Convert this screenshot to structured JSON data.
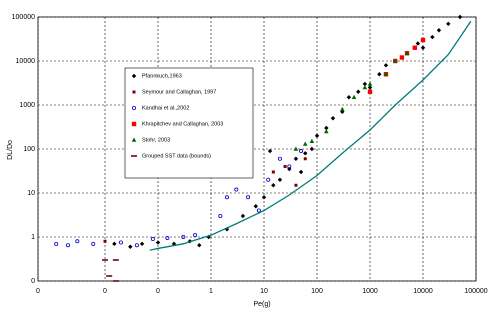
{
  "chart_data": {
    "type": "scatter",
    "xlabel": "Pe(g)",
    "ylabel": "DL/Do",
    "xlog": true,
    "ylog": true,
    "grid": true,
    "legend": "upper left",
    "xlim": [
      0.000544,
      100000
    ],
    "ylim": [
      0.1,
      100000
    ],
    "xticks": [
      {
        "value": 0.000544,
        "label": "0"
      },
      {
        "value": 0.01,
        "label": "0"
      },
      {
        "value": 0.1,
        "label": "0"
      },
      1,
      10,
      100,
      1000,
      10000,
      100000
    ],
    "yticks": [
      {
        "value": 0.1,
        "label": "0"
      },
      1,
      10,
      100,
      1000,
      10000,
      100000
    ],
    "series": [
      {
        "name": "Pfannkuch,1963",
        "color": "#000000",
        "marker": "diamond",
        "x": [
          0.015,
          0.03,
          0.05,
          0.1,
          0.2,
          0.4,
          0.6,
          0.9,
          2,
          4,
          7,
          10,
          13,
          15,
          20,
          30,
          40,
          50,
          60,
          80,
          100,
          150,
          200,
          300,
          400,
          600,
          800,
          1000,
          1500,
          2000,
          3000,
          5000,
          8000,
          10000,
          15000,
          20000,
          30000,
          50000
        ],
        "values": [
          0.7,
          0.6,
          0.7,
          0.75,
          0.7,
          0.8,
          0.65,
          1.0,
          1.5,
          3,
          5,
          8,
          90,
          15,
          20,
          35,
          60,
          30,
          80,
          100,
          200,
          300,
          500,
          700,
          1500,
          2000,
          3000,
          2500,
          5000,
          8000,
          10000,
          15000,
          25000,
          20000,
          35000,
          50000,
          70000,
          100000
        ]
      },
      {
        "name": "Seymour and Callaghan, 1997",
        "color": "#800000",
        "marker": "square",
        "x": [
          0.01,
          15,
          25,
          40,
          60
        ],
        "values": [
          0.8,
          30,
          40,
          15,
          60
        ]
      },
      {
        "name": "Kandhai et al.,2002",
        "color": "#0000cc",
        "marker": "circle",
        "x": [
          0.0012,
          0.002,
          0.003,
          0.006,
          0.02,
          0.04,
          0.08,
          0.15,
          0.3,
          0.5,
          1.5,
          2,
          3,
          5,
          8,
          12,
          20,
          30,
          50
        ],
        "values": [
          0.7,
          0.65,
          0.8,
          0.7,
          0.75,
          0.65,
          0.9,
          0.95,
          1.0,
          1.1,
          3,
          8,
          12,
          8,
          4,
          20,
          60,
          40,
          90
        ]
      },
      {
        "name": "Khrapitchev and Callaghan, 2003",
        "color": "#ff0000",
        "marker": "bigsquare",
        "x": [
          1000,
          2000,
          3000,
          4000,
          5000,
          7000,
          10000
        ],
        "values": [
          2000,
          5000,
          10000,
          12000,
          15000,
          20000,
          30000
        ]
      },
      {
        "name": "Stohr, 2003",
        "color": "#006600",
        "marker": "triangle",
        "x": [
          40,
          60,
          80,
          150,
          300,
          500,
          800,
          1000,
          2000,
          3000,
          5000
        ],
        "values": [
          100,
          130,
          150,
          250,
          800,
          1500,
          2500,
          3000,
          5000,
          10000,
          15000
        ]
      },
      {
        "name": "Grouped SST data (bounds)",
        "color": "#800000",
        "marker": "dash",
        "x": [
          0.01,
          0.016,
          0.012,
          0.016
        ],
        "values": [
          0.3,
          0.3,
          0.13,
          0.1
        ]
      },
      {
        "color": "#007b7b",
        "marker": "line",
        "x": [
          0.07,
          0.1,
          0.3,
          1,
          3,
          10,
          30,
          100,
          300,
          1000,
          3000,
          10000,
          30000,
          80000
        ],
        "values": [
          0.5,
          0.55,
          0.7,
          1.1,
          2,
          4,
          9,
          25,
          80,
          270,
          1000,
          3700,
          14000,
          80000
        ]
      }
    ]
  }
}
